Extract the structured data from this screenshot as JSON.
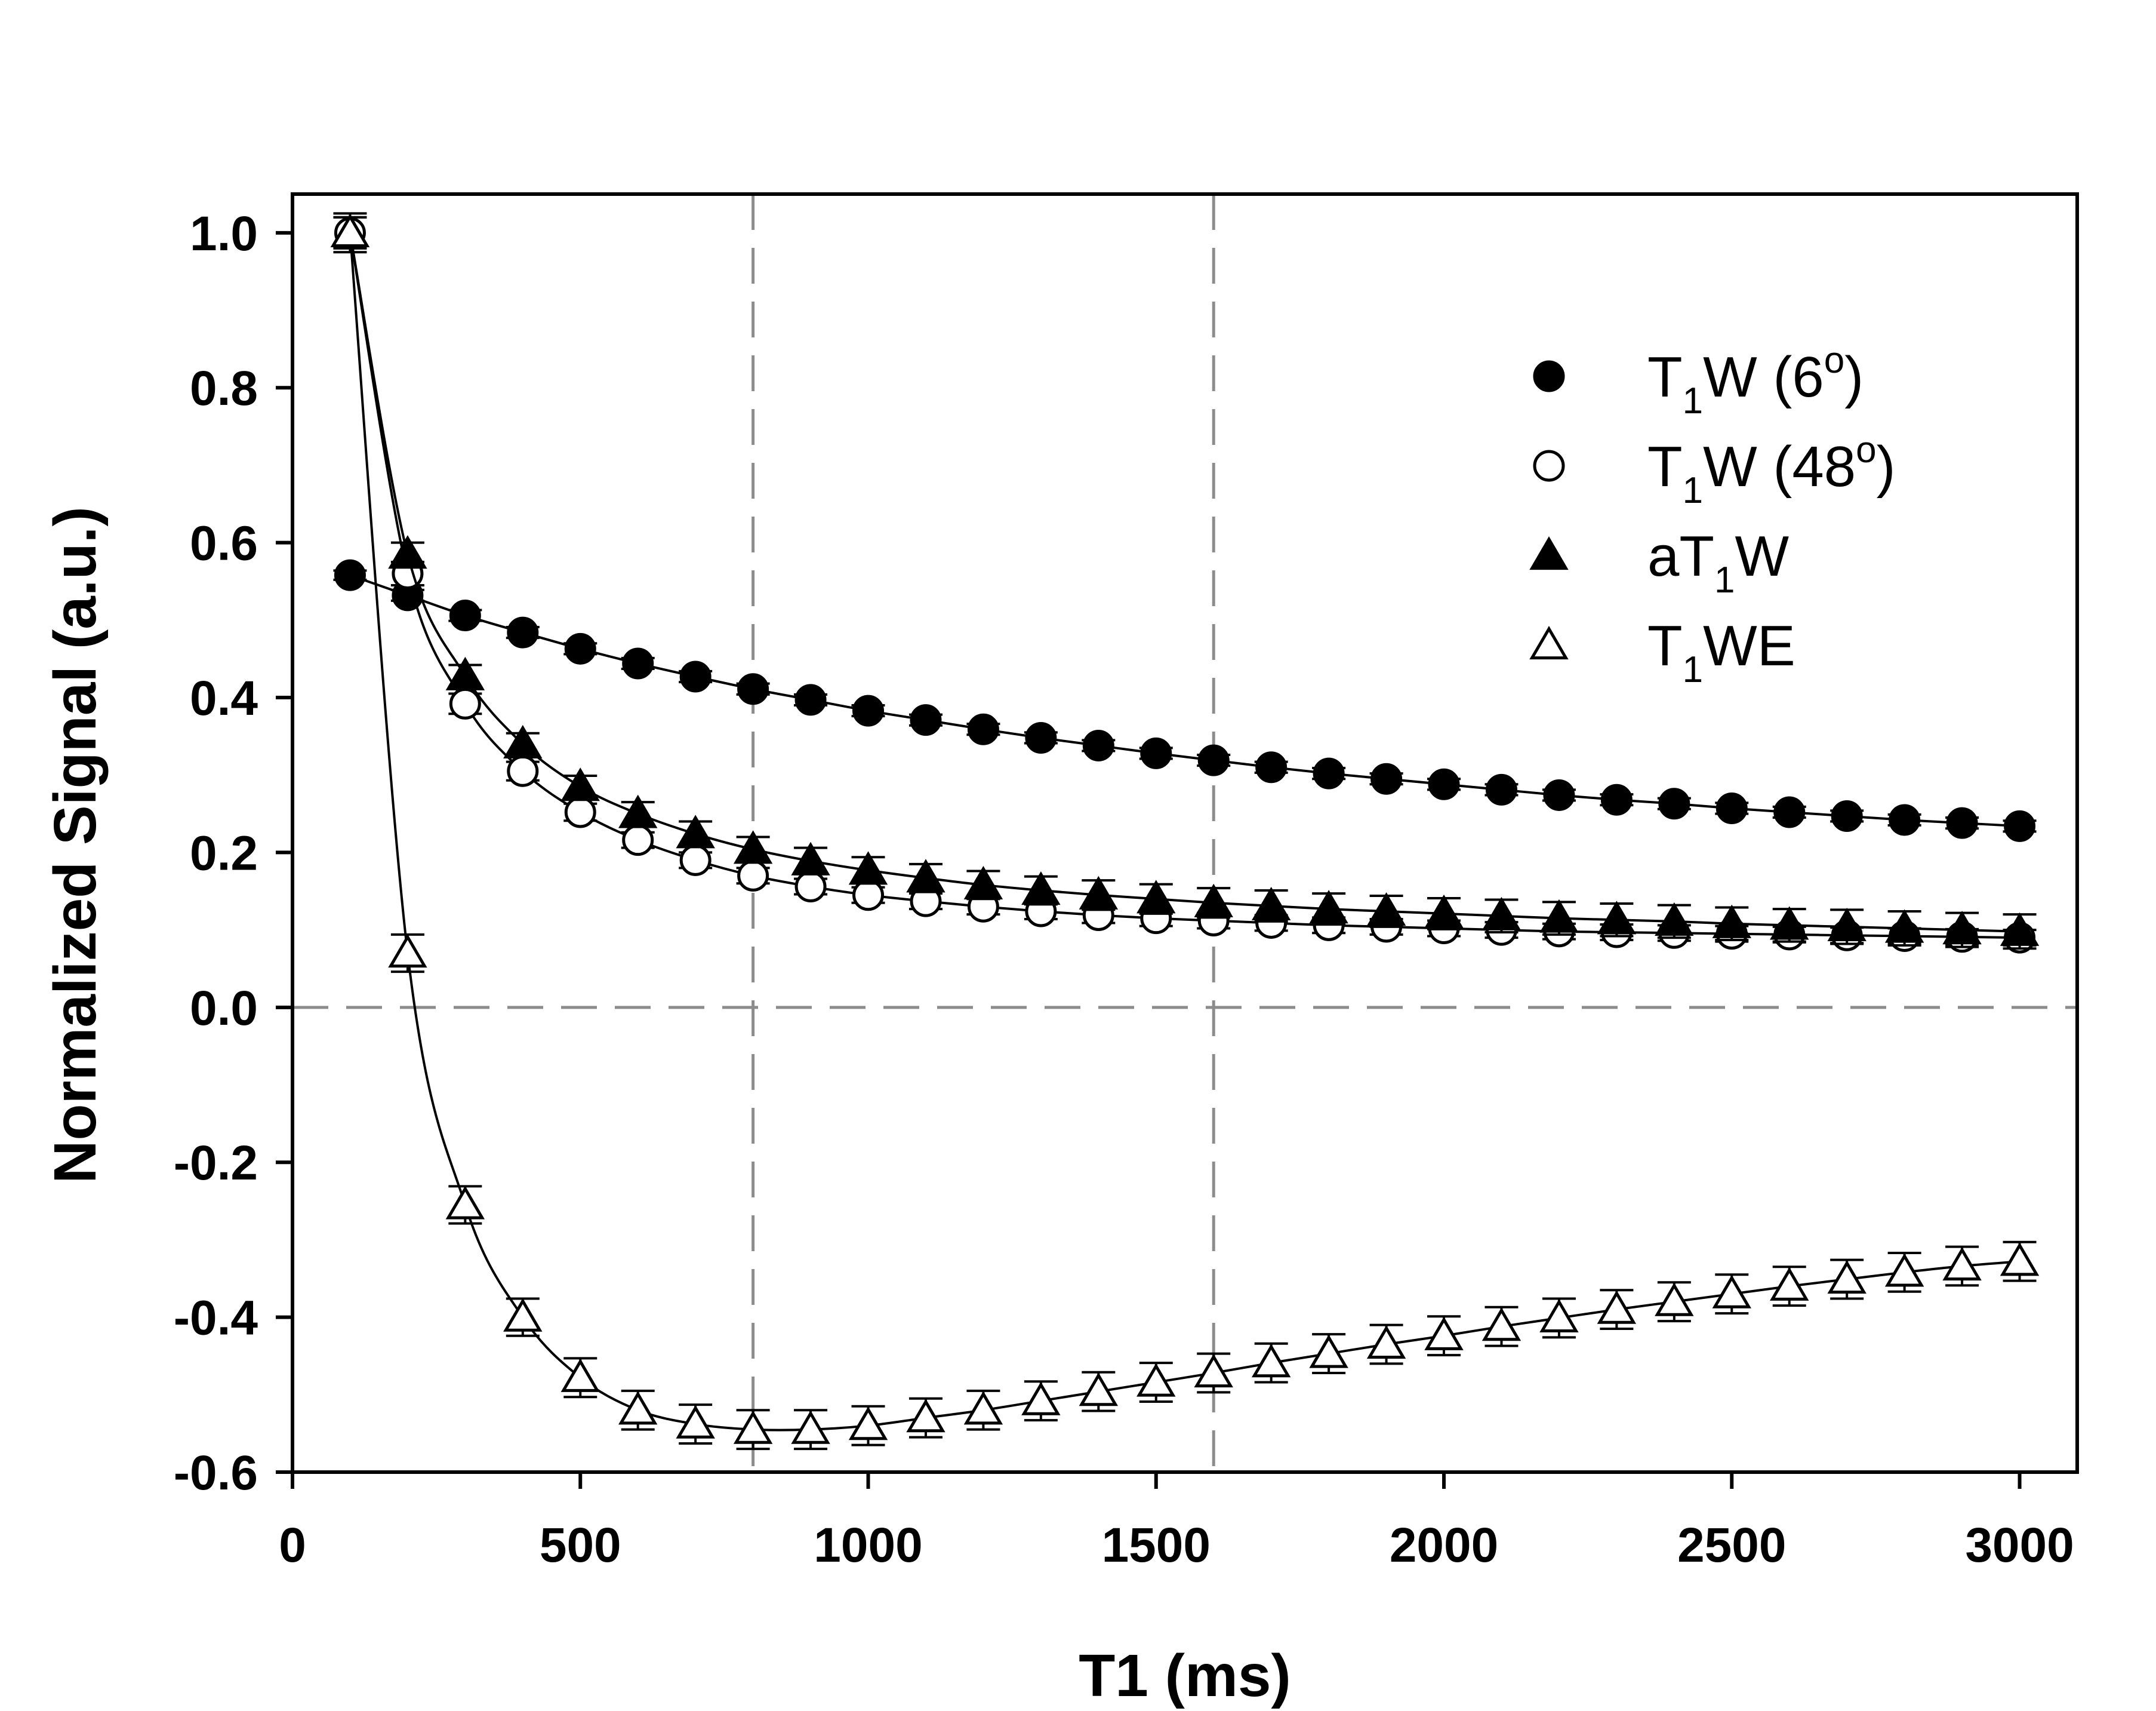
{
  "chart_data": {
    "type": "scatter",
    "title": "",
    "xlabel": "T1 (ms)",
    "ylabel": "Normalized Signal (a.u.)",
    "xlim": [
      0,
      3100
    ],
    "ylim": [
      -0.6,
      1.05
    ],
    "xticks": [
      0,
      500,
      1000,
      1500,
      2000,
      2500,
      3000
    ],
    "xtick_labels": [
      "0",
      "500",
      "1000",
      "1500",
      "2000",
      "2500",
      "3000"
    ],
    "yticks": [
      -0.6,
      -0.4,
      -0.2,
      0.0,
      0.2,
      0.4,
      0.6,
      0.8,
      1.0
    ],
    "ytick_labels": [
      "-0.6",
      "-0.4",
      "-0.2",
      "0.0",
      "0.2",
      "0.4",
      "0.6",
      "0.8",
      "1.0"
    ],
    "grid": false,
    "reference_lines": {
      "x": [
        800,
        1600
      ],
      "y": [
        0.0
      ]
    },
    "legend_position": "top-right",
    "x": [
      100,
      200,
      300,
      400,
      500,
      600,
      700,
      800,
      900,
      1000,
      1100,
      1200,
      1300,
      1400,
      1500,
      1600,
      1700,
      1800,
      1900,
      2000,
      2100,
      2200,
      2300,
      2400,
      2500,
      2600,
      2700,
      2800,
      2900,
      3000
    ],
    "series": [
      {
        "name": "T1W (6o)",
        "legend": {
          "main": "T",
          "sub": "1",
          "rest": "W (6",
          "sup": "o",
          "end": ")"
        },
        "marker": "filled-circle",
        "values": [
          0.558,
          0.532,
          0.506,
          0.484,
          0.463,
          0.444,
          0.427,
          0.411,
          0.397,
          0.383,
          0.371,
          0.359,
          0.348,
          0.338,
          0.328,
          0.319,
          0.31,
          0.302,
          0.295,
          0.288,
          0.281,
          0.274,
          0.268,
          0.263,
          0.257,
          0.252,
          0.247,
          0.242,
          0.238,
          0.234
        ],
        "errors": [
          0.006,
          0.007,
          0.007,
          0.007,
          0.007,
          0.007,
          0.007,
          0.007,
          0.007,
          0.007,
          0.007,
          0.007,
          0.007,
          0.007,
          0.007,
          0.007,
          0.007,
          0.007,
          0.007,
          0.007,
          0.007,
          0.007,
          0.007,
          0.007,
          0.007,
          0.007,
          0.007,
          0.007,
          0.007,
          0.007
        ]
      },
      {
        "name": "T1W (48o)",
        "legend": {
          "main": "T",
          "sub": "1",
          "rest": "W (48",
          "sup": "o",
          "end": ")"
        },
        "marker": "open-circle",
        "values": [
          1.0,
          0.56,
          0.392,
          0.305,
          0.252,
          0.216,
          0.19,
          0.17,
          0.156,
          0.145,
          0.137,
          0.13,
          0.124,
          0.119,
          0.115,
          0.112,
          0.109,
          0.106,
          0.104,
          0.102,
          0.1,
          0.098,
          0.097,
          0.096,
          0.095,
          0.094,
          0.093,
          0.092,
          0.091,
          0.09
        ],
        "errors": [
          0.02,
          0.015,
          0.013,
          0.012,
          0.011,
          0.01,
          0.01,
          0.01,
          0.01,
          0.01,
          0.01,
          0.01,
          0.01,
          0.01,
          0.01,
          0.01,
          0.01,
          0.01,
          0.01,
          0.01,
          0.01,
          0.01,
          0.01,
          0.01,
          0.01,
          0.01,
          0.01,
          0.01,
          0.01,
          0.01
        ]
      },
      {
        "name": "aT1W",
        "legend": {
          "main": "aT",
          "sub": "1",
          "rest": "W",
          "sup": "",
          "end": ""
        },
        "marker": "filled-triangle",
        "values": [
          1.0,
          0.585,
          0.428,
          0.34,
          0.285,
          0.25,
          0.224,
          0.204,
          0.189,
          0.177,
          0.167,
          0.158,
          0.151,
          0.145,
          0.14,
          0.135,
          0.131,
          0.127,
          0.124,
          0.121,
          0.118,
          0.115,
          0.113,
          0.111,
          0.108,
          0.106,
          0.104,
          0.102,
          0.1,
          0.098
        ],
        "errors": [
          0.02,
          0.015,
          0.014,
          0.014,
          0.014,
          0.015,
          0.016,
          0.016,
          0.017,
          0.017,
          0.018,
          0.018,
          0.018,
          0.019,
          0.019,
          0.019,
          0.02,
          0.02,
          0.02,
          0.02,
          0.021,
          0.021,
          0.021,
          0.021,
          0.021,
          0.021,
          0.022,
          0.022,
          0.022,
          0.022
        ]
      },
      {
        "name": "T1WE",
        "legend": {
          "main": "T",
          "sub": "1",
          "rest": "WE",
          "sup": "",
          "end": ""
        },
        "marker": "open-triangle",
        "values": [
          1.0,
          0.07,
          -0.255,
          -0.4,
          -0.478,
          -0.52,
          -0.538,
          -0.545,
          -0.545,
          -0.54,
          -0.53,
          -0.52,
          -0.508,
          -0.496,
          -0.484,
          -0.472,
          -0.459,
          -0.447,
          -0.435,
          -0.424,
          -0.412,
          -0.401,
          -0.39,
          -0.38,
          -0.37,
          -0.36,
          -0.351,
          -0.342,
          -0.334,
          -0.328
        ],
        "errors": [
          0.025,
          0.024,
          0.024,
          0.024,
          0.025,
          0.025,
          0.025,
          0.025,
          0.025,
          0.025,
          0.025,
          0.025,
          0.025,
          0.025,
          0.025,
          0.025,
          0.025,
          0.025,
          0.025,
          0.025,
          0.025,
          0.025,
          0.025,
          0.025,
          0.025,
          0.025,
          0.025,
          0.025,
          0.025,
          0.025
        ]
      }
    ]
  }
}
